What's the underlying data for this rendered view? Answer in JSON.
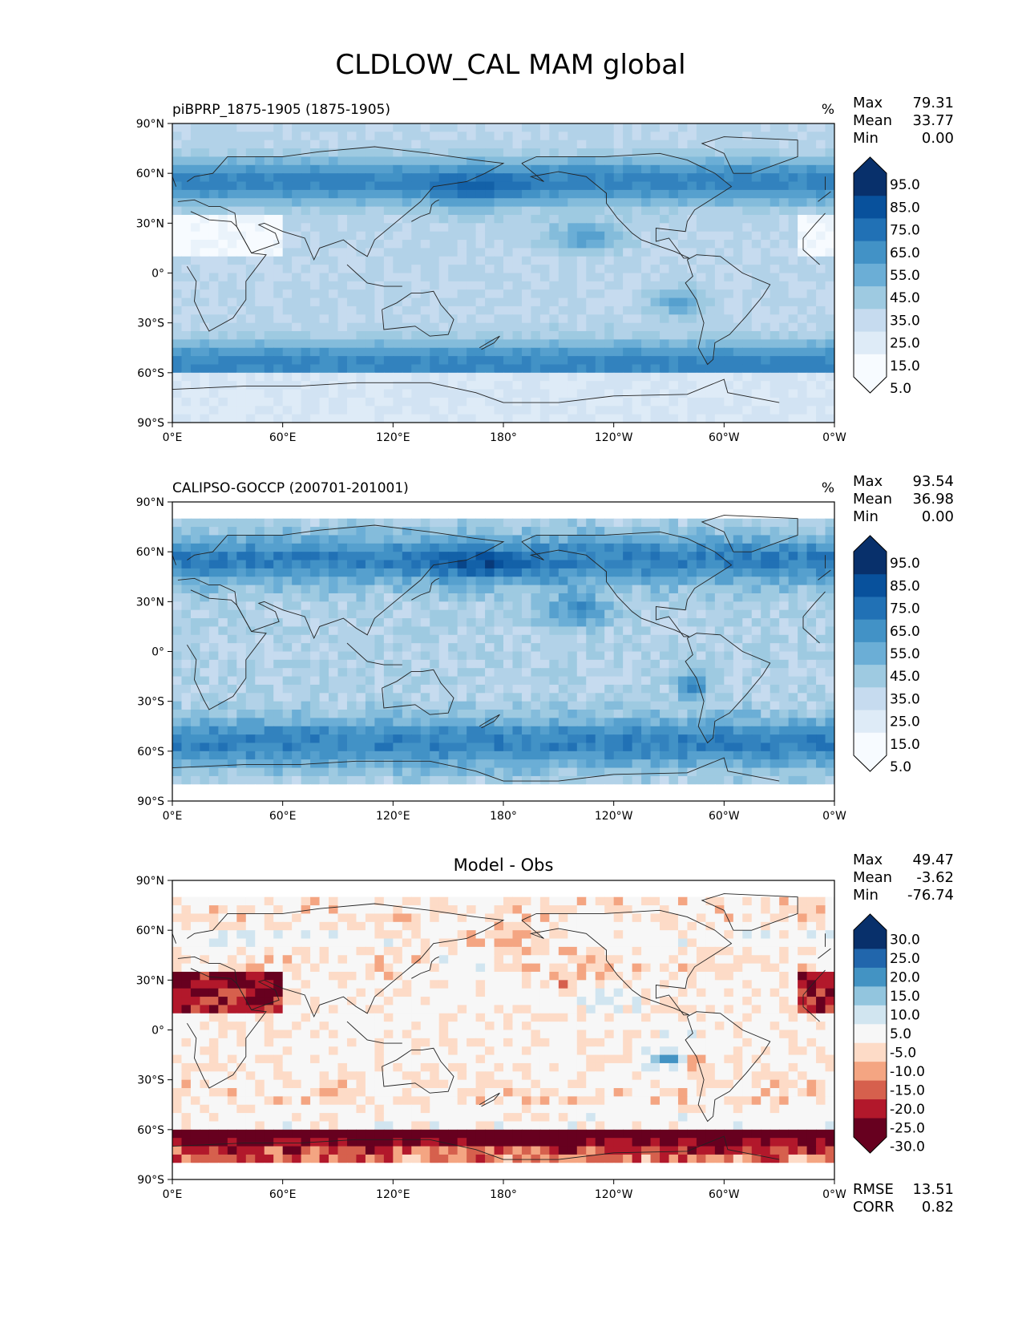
{
  "title": "CLDLOW_CAL MAM global",
  "axes": {
    "lat_ticks": [
      "90°N",
      "60°N",
      "30°N",
      "0°",
      "30°S",
      "60°S",
      "90°S"
    ],
    "lon_ticks": [
      "0°E",
      "60°E",
      "120°E",
      "180°",
      "120°W",
      "60°W",
      "0°W"
    ]
  },
  "panels": [
    {
      "id": "test",
      "left_title": "piBPRP_1875-1905 (1875-1905)",
      "center_title": "",
      "units": "%",
      "stats": [
        {
          "label": "Max",
          "value": "79.31"
        },
        {
          "label": "Mean",
          "value": "33.77"
        },
        {
          "label": "Min",
          "value": "0.00"
        }
      ],
      "colorbar": {
        "labels": [
          "95.0",
          "85.0",
          "75.0",
          "65.0",
          "55.0",
          "45.0",
          "35.0",
          "25.0",
          "15.0",
          "5.0"
        ],
        "colors": [
          "#08306b",
          "#08519c",
          "#2171b5",
          "#4292c6",
          "#6baed6",
          "#9ecae1",
          "#c6dbef",
          "#deebf7",
          "#f7fbff"
        ],
        "extend": "both"
      },
      "footer": []
    },
    {
      "id": "reference",
      "left_title": "CALIPSO-GOCCP (200701-201001)",
      "center_title": "",
      "units": "%",
      "stats": [
        {
          "label": "Max",
          "value": "93.54"
        },
        {
          "label": "Mean",
          "value": "36.98"
        },
        {
          "label": "Min",
          "value": "0.00"
        }
      ],
      "colorbar": {
        "labels": [
          "95.0",
          "85.0",
          "75.0",
          "65.0",
          "55.0",
          "45.0",
          "35.0",
          "25.0",
          "15.0",
          "5.0"
        ],
        "colors": [
          "#08306b",
          "#08519c",
          "#2171b5",
          "#4292c6",
          "#6baed6",
          "#9ecae1",
          "#c6dbef",
          "#deebf7",
          "#f7fbff"
        ],
        "extend": "both"
      },
      "footer": []
    },
    {
      "id": "difference",
      "left_title": "",
      "center_title": "Model - Obs",
      "units": "",
      "stats": [
        {
          "label": "Max",
          "value": "49.47"
        },
        {
          "label": "Mean",
          "value": "-3.62"
        },
        {
          "label": "Min",
          "value": "-76.74"
        }
      ],
      "colorbar": {
        "labels": [
          "30.0",
          "25.0",
          "20.0",
          "15.0",
          "10.0",
          "5.0",
          "-5.0",
          "-10.0",
          "-15.0",
          "-20.0",
          "-25.0",
          "-30.0"
        ],
        "colors": [
          "#08306b",
          "#2166ac",
          "#4393c3",
          "#92c5de",
          "#d1e5f0",
          "#f7f7f7",
          "#fddbc7",
          "#f4a582",
          "#d6604d",
          "#b2182b",
          "#67001f"
        ],
        "extend": "both"
      },
      "footer": [
        {
          "label": "RMSE",
          "value": "13.51"
        },
        {
          "label": "CORR",
          "value": "0.82"
        }
      ]
    }
  ]
}
